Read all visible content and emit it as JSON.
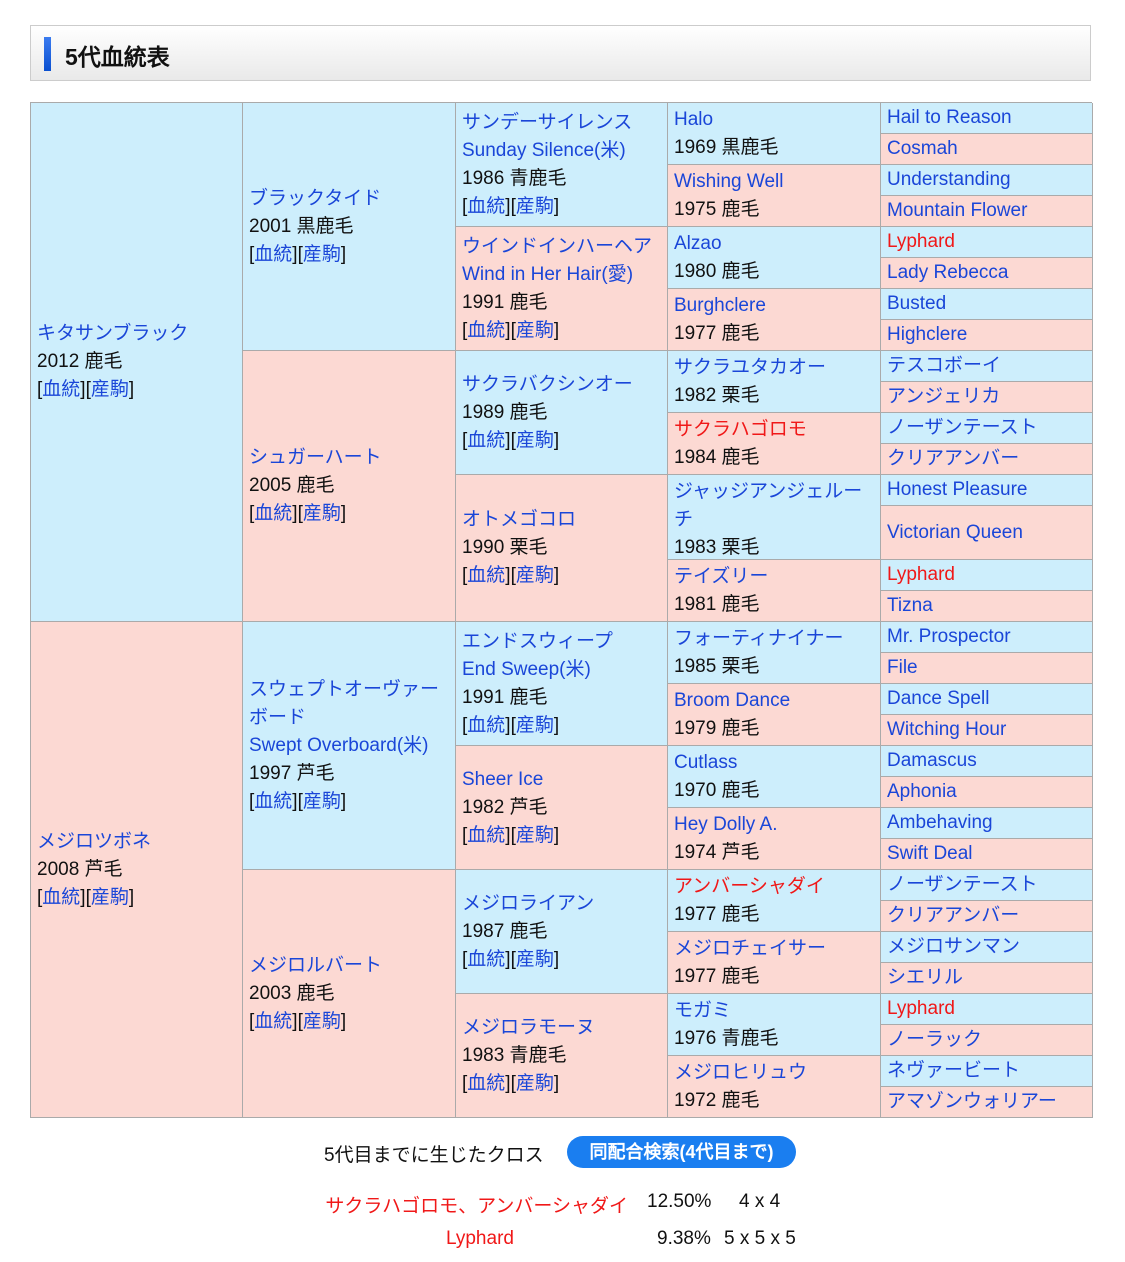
{
  "title": "5代血統表",
  "link_labels": {
    "pedigree": "血統",
    "offspring": "産駒"
  },
  "colors": {
    "male": "#cdeefc",
    "female": "#fcd9d3",
    "link": "#1a46d8",
    "highlight": "#f01818"
  },
  "generations": [
    [
      {
        "name": "キタサンブラック",
        "info": "2012 鹿毛",
        "sex": "m",
        "links": true
      },
      {
        "name": "メジロツボネ",
        "info": "2008 芦毛",
        "sex": "f",
        "links": true
      }
    ],
    [
      {
        "name": "ブラックタイド",
        "info": "2001 黒鹿毛",
        "sex": "m",
        "links": true
      },
      {
        "name": "シュガーハート",
        "info": "2005 鹿毛",
        "sex": "f",
        "links": true
      },
      {
        "name": "スウェプトオーヴァーボード",
        "en": "Swept Overboard(米)",
        "info": "1997 芦毛",
        "sex": "m",
        "links": true
      },
      {
        "name": "メジロルバート",
        "info": "2003 鹿毛",
        "sex": "f",
        "links": true
      }
    ],
    [
      {
        "name": "サンデーサイレンス",
        "en": "Sunday Silence(米)",
        "info": "1986 青鹿毛",
        "sex": "m",
        "links": true
      },
      {
        "name": "ウインドインハーヘア",
        "en": "Wind in Her Hair(愛)",
        "info": "1991 鹿毛",
        "sex": "f",
        "links": true
      },
      {
        "name": "サクラバクシンオー",
        "info": "1989 鹿毛",
        "sex": "m",
        "links": true
      },
      {
        "name": "オトメゴコロ",
        "info": "1990 栗毛",
        "sex": "f",
        "links": true
      },
      {
        "name": "エンドスウィープ",
        "en": "End Sweep(米)",
        "info": "1991 鹿毛",
        "sex": "m",
        "links": true
      },
      {
        "name": "Sheer Ice",
        "info": "1982 芦毛",
        "sex": "f",
        "links": true
      },
      {
        "name": "メジロライアン",
        "info": "1987 鹿毛",
        "sex": "m",
        "links": true
      },
      {
        "name": "メジロラモーヌ",
        "info": "1983 青鹿毛",
        "sex": "f",
        "links": true
      }
    ],
    [
      {
        "name": "Halo",
        "info": "1969 黒鹿毛",
        "sex": "m"
      },
      {
        "name": "Wishing Well",
        "info": "1975 鹿毛",
        "sex": "f"
      },
      {
        "name": "Alzao",
        "info": "1980 鹿毛",
        "sex": "m"
      },
      {
        "name": "Burghclere",
        "info": "1977 鹿毛",
        "sex": "f"
      },
      {
        "name": "サクラユタカオー",
        "info": "1982 栗毛",
        "sex": "m"
      },
      {
        "name": "サクラハゴロモ",
        "info": "1984 鹿毛",
        "sex": "f",
        "red": true
      },
      {
        "name": "ジャッジアンジェルーチ",
        "info": "1983 栗毛",
        "sex": "m"
      },
      {
        "name": "テイズリー",
        "info": "1981 鹿毛",
        "sex": "f"
      },
      {
        "name": "フォーティナイナー",
        "info": "1985 栗毛",
        "sex": "m"
      },
      {
        "name": "Broom Dance",
        "info": "1979 鹿毛",
        "sex": "f"
      },
      {
        "name": "Cutlass",
        "info": "1970 鹿毛",
        "sex": "m"
      },
      {
        "name": "Hey Dolly A.",
        "info": "1974 芦毛",
        "sex": "f"
      },
      {
        "name": "アンバーシャダイ",
        "info": "1977 鹿毛",
        "sex": "m",
        "red": true
      },
      {
        "name": "メジロチェイサー",
        "info": "1977 鹿毛",
        "sex": "f"
      },
      {
        "name": "モガミ",
        "info": "1976 青鹿毛",
        "sex": "m"
      },
      {
        "name": "メジロヒリュウ",
        "info": "1972 鹿毛",
        "sex": "f"
      }
    ],
    [
      {
        "name": "Hail to Reason"
      },
      {
        "name": "Cosmah"
      },
      {
        "name": "Understanding"
      },
      {
        "name": "Mountain Flower"
      },
      {
        "name": "Lyphard",
        "red": true
      },
      {
        "name": "Lady Rebecca"
      },
      {
        "name": "Busted"
      },
      {
        "name": "Highclere"
      },
      {
        "name": "テスコボーイ"
      },
      {
        "name": "アンジェリカ"
      },
      {
        "name": "ノーザンテースト"
      },
      {
        "name": "クリアアンバー"
      },
      {
        "name": "Honest Pleasure"
      },
      {
        "name": "Victorian Queen"
      },
      {
        "name": "Lyphard",
        "red": true
      },
      {
        "name": "Tizna"
      },
      {
        "name": "Mr. Prospector"
      },
      {
        "name": "File"
      },
      {
        "name": "Dance Spell"
      },
      {
        "name": "Witching Hour"
      },
      {
        "name": "Damascus"
      },
      {
        "name": "Aphonia"
      },
      {
        "name": "Ambehaving"
      },
      {
        "name": "Swift Deal"
      },
      {
        "name": "ノーザンテースト"
      },
      {
        "name": "クリアアンバー"
      },
      {
        "name": "メジロサンマン"
      },
      {
        "name": "シエリル"
      },
      {
        "name": "Lyphard",
        "red": true
      },
      {
        "name": "ノーラック"
      },
      {
        "name": "ネヴァービート"
      },
      {
        "name": "アマゾンウォリアー"
      }
    ]
  ],
  "cross": {
    "label": "5代目までに生じたクロス",
    "search_button": "同配合検索(4代目まで)",
    "rows": [
      {
        "names": "サクラハゴロモ、アンバーシャダイ",
        "percent": "12.50%",
        "pattern": "4 x 4"
      },
      {
        "names": "Lyphard",
        "percent": "9.38%",
        "pattern": "5 x 5 x 5"
      }
    ]
  }
}
